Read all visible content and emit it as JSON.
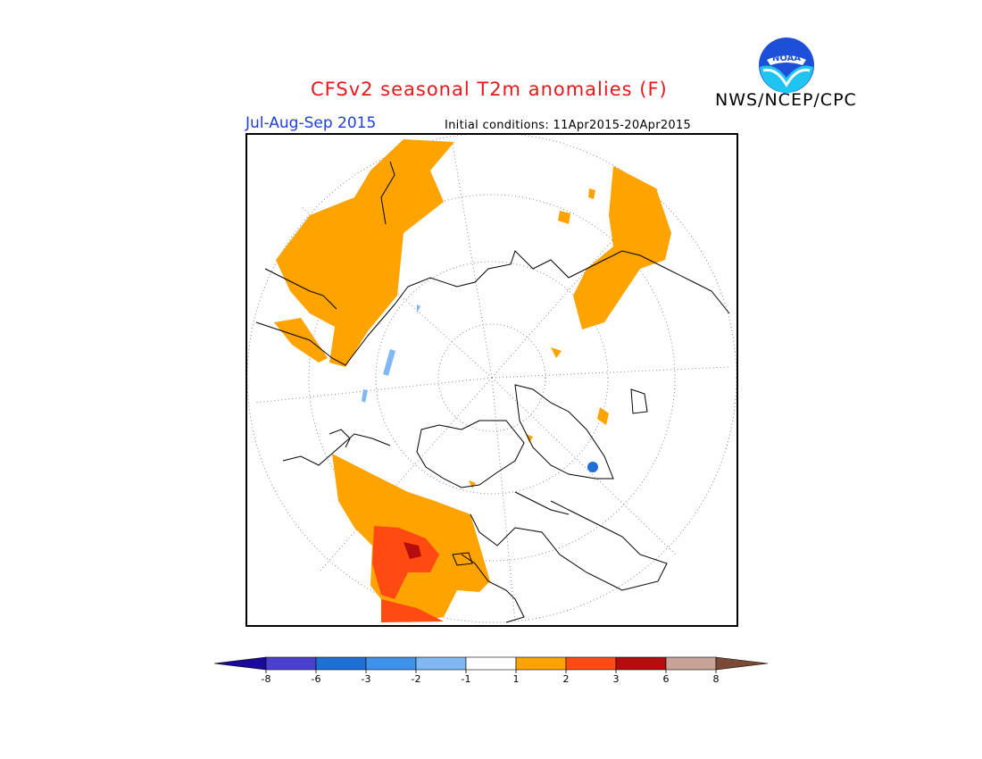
{
  "header": {
    "title": "CFSv2 seasonal T2m anomalies (F)",
    "agency": "NWS/NCEP/CPC",
    "season": "Jul-Aug-Sep 2015",
    "initial_conditions": "Initial conditions: 11Apr2015-20Apr2015"
  },
  "logo": {
    "text": "NOAA",
    "icon": "noaa-logo-icon"
  },
  "map": {
    "projection": "north-polar-stereographic",
    "land_color": "#ffffff",
    "coastline_color": "#000000",
    "graticule_color": "#888888"
  },
  "legend": {
    "bins": [
      {
        "color": "#1b0a9e"
      },
      {
        "color": "#4b3fd0"
      },
      {
        "color": "#1e6fd6"
      },
      {
        "color": "#3f92ec"
      },
      {
        "color": "#7fb8f2"
      },
      {
        "color": "#ffffff"
      },
      {
        "color": "#ffa300"
      },
      {
        "color": "#ff4a12"
      },
      {
        "color": "#b50d0d"
      },
      {
        "color": "#c9a398"
      },
      {
        "color": "#7a4a36"
      }
    ],
    "tick_labels": [
      "-8",
      "-6",
      "-3",
      "-2",
      "-1",
      "1",
      "2",
      "3",
      "6",
      "8"
    ]
  },
  "colors": {
    "title": "#e31a1c",
    "season": "#1f3fd6",
    "warm1": "#ffa300",
    "warm2": "#ff4a12",
    "warm3": "#b50d0d",
    "cool1": "#7fb8f2",
    "cool2": "#3f92ec"
  }
}
